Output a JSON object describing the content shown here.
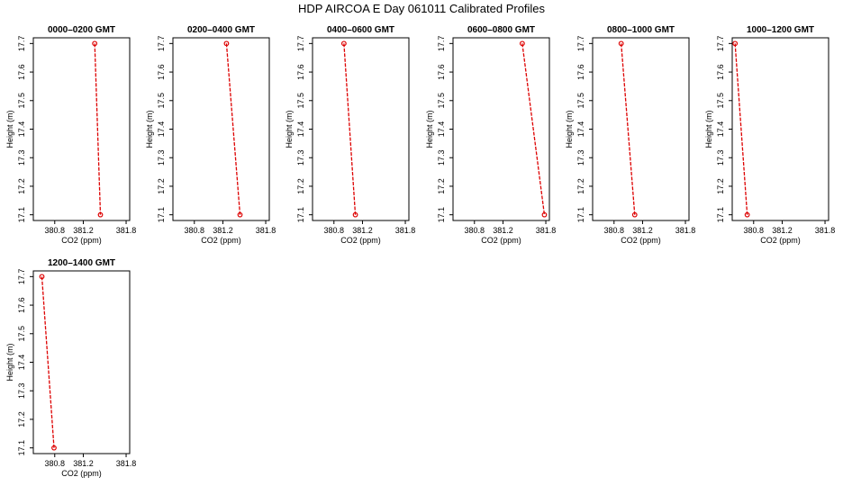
{
  "title": "HDP AIRCOA E  Day 061011  Calibrated Profiles",
  "chart_data": [
    {
      "type": "line",
      "title": "0000–0200 GMT",
      "xlabel": "CO2 (ppm)",
      "ylabel": "Height (m)",
      "xlim": [
        380.5,
        381.85
      ],
      "ylim": [
        17.08,
        17.72
      ],
      "xticks": [
        "380.8",
        "381.2",
        "381.8"
      ],
      "yticks": [
        "17.1",
        "17.2",
        "17.3",
        "17.4",
        "17.5",
        "17.6",
        "17.7"
      ],
      "series": [
        {
          "x": [
            381.36,
            381.44
          ],
          "y": [
            17.7,
            17.1
          ]
        }
      ],
      "color": "#dd0000"
    },
    {
      "type": "line",
      "title": "0200–0400 GMT",
      "xlabel": "CO2 (ppm)",
      "ylabel": "Height (m)",
      "xlim": [
        380.5,
        381.85
      ],
      "ylim": [
        17.08,
        17.72
      ],
      "xticks": [
        "380.8",
        "381.2",
        "381.8"
      ],
      "yticks": [
        "17.1",
        "17.2",
        "17.3",
        "17.4",
        "17.5",
        "17.6",
        "17.7"
      ],
      "series": [
        {
          "x": [
            381.25,
            381.44
          ],
          "y": [
            17.7,
            17.1
          ]
        }
      ],
      "color": "#dd0000"
    },
    {
      "type": "line",
      "title": "0400–0600 GMT",
      "xlabel": "CO2 (ppm)",
      "ylabel": "Height (m)",
      "xlim": [
        380.5,
        381.85
      ],
      "ylim": [
        17.08,
        17.72
      ],
      "xticks": [
        "380.8",
        "381.2",
        "381.8"
      ],
      "yticks": [
        "17.1",
        "17.2",
        "17.3",
        "17.4",
        "17.5",
        "17.6",
        "17.7"
      ],
      "series": [
        {
          "x": [
            380.94,
            381.1
          ],
          "y": [
            17.7,
            17.1
          ]
        }
      ],
      "color": "#dd0000"
    },
    {
      "type": "line",
      "title": "0600–0800 GMT",
      "xlabel": "CO2 (ppm)",
      "ylabel": "Height (m)",
      "xlim": [
        380.5,
        381.85
      ],
      "ylim": [
        17.08,
        17.72
      ],
      "xticks": [
        "380.8",
        "381.2",
        "381.8"
      ],
      "yticks": [
        "17.1",
        "17.2",
        "17.3",
        "17.4",
        "17.5",
        "17.6",
        "17.7"
      ],
      "series": [
        {
          "x": [
            381.47,
            381.78
          ],
          "y": [
            17.7,
            17.1
          ]
        }
      ],
      "color": "#dd0000"
    },
    {
      "type": "line",
      "title": "0800–1000 GMT",
      "xlabel": "CO2 (ppm)",
      "ylabel": "Height (m)",
      "xlim": [
        380.5,
        381.85
      ],
      "ylim": [
        17.08,
        17.72
      ],
      "xticks": [
        "380.8",
        "381.2",
        "381.8"
      ],
      "yticks": [
        "17.1",
        "17.2",
        "17.3",
        "17.4",
        "17.5",
        "17.6",
        "17.7"
      ],
      "series": [
        {
          "x": [
            380.9,
            381.09
          ],
          "y": [
            17.7,
            17.1
          ]
        }
      ],
      "color": "#dd0000"
    },
    {
      "type": "line",
      "title": "1000–1200 GMT",
      "xlabel": "CO2 (ppm)",
      "ylabel": "Height (m)",
      "xlim": [
        380.5,
        381.85
      ],
      "ylim": [
        17.08,
        17.72
      ],
      "xticks": [
        "380.8",
        "381.2",
        "381.8"
      ],
      "yticks": [
        "17.1",
        "17.2",
        "17.3",
        "17.4",
        "17.5",
        "17.6",
        "17.7"
      ],
      "series": [
        {
          "x": [
            380.54,
            380.71
          ],
          "y": [
            17.7,
            17.1
          ]
        }
      ],
      "color": "#dd0000"
    },
    {
      "type": "line",
      "title": "1200–1400 GMT",
      "xlabel": "CO2 (ppm)",
      "ylabel": "Height (m)",
      "xlim": [
        380.5,
        381.85
      ],
      "ylim": [
        17.08,
        17.72
      ],
      "xticks": [
        "380.8",
        "381.2",
        "381.8"
      ],
      "yticks": [
        "17.1",
        "17.2",
        "17.3",
        "17.4",
        "17.5",
        "17.6",
        "17.7"
      ],
      "series": [
        {
          "x": [
            380.62,
            380.79
          ],
          "y": [
            17.7,
            17.1
          ]
        }
      ],
      "color": "#dd0000"
    }
  ]
}
